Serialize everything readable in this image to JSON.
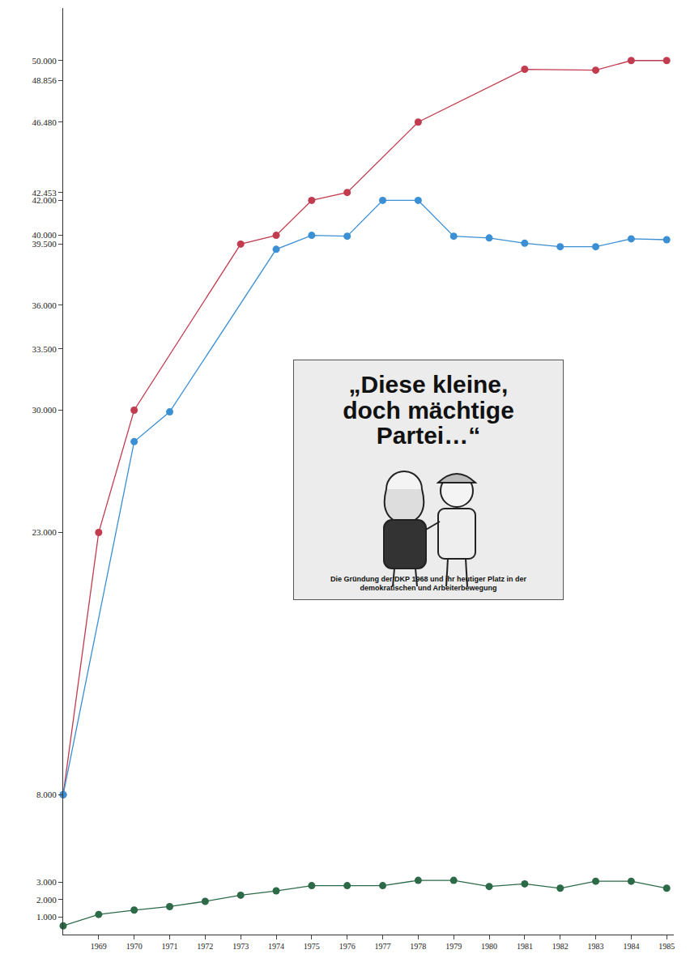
{
  "chart_data": {
    "type": "line",
    "xlim": [
      1968,
      1985.2
    ],
    "xticks": [
      1969,
      1970,
      1971,
      1972,
      1973,
      1974,
      1975,
      1976,
      1977,
      1978,
      1979,
      1980,
      1981,
      1982,
      1983,
      1984,
      1985
    ],
    "ylim": [
      0,
      53000
    ],
    "yticks": [
      {
        "value": 50000,
        "label": "50.000"
      },
      {
        "value": 48856,
        "label": "48.856"
      },
      {
        "value": 46480,
        "label": "46.480"
      },
      {
        "value": 42453,
        "label": "42.453"
      },
      {
        "value": 42000,
        "label": "42.000"
      },
      {
        "value": 40000,
        "label": "40.000"
      },
      {
        "value": 39500,
        "label": "39.500"
      },
      {
        "value": 36000,
        "label": "36.000"
      },
      {
        "value": 33500,
        "label": "33.500"
      },
      {
        "value": 30000,
        "label": "30.000"
      },
      {
        "value": 23000,
        "label": "23.000"
      },
      {
        "value": 8000,
        "label": "8.000"
      },
      {
        "value": 3000,
        "label": "3.000"
      },
      {
        "value": 2000,
        "label": "2.000"
      },
      {
        "value": 1000,
        "label": "1.000"
      }
    ],
    "grid": false,
    "marker": "circle",
    "series": [
      {
        "color": "#c23b4e",
        "x": [
          1968,
          1969,
          1970,
          1973,
          1974,
          1975,
          1976,
          1978,
          1981,
          1983,
          1984,
          1985
        ],
        "values": [
          8000,
          23000,
          30000,
          39500,
          40000,
          42000,
          42453,
          46480,
          49500,
          49450,
          50000,
          50000
        ]
      },
      {
        "color": "#3b8fd4",
        "x": [
          1968,
          1970,
          1971,
          1974,
          1975,
          1976,
          1977,
          1978,
          1979,
          1980,
          1981,
          1982,
          1983,
          1984,
          1985
        ],
        "values": [
          8000,
          28200,
          29900,
          39200,
          40000,
          39950,
          42000,
          42000,
          39950,
          39850,
          39550,
          39350,
          39350,
          39800,
          39750
        ]
      },
      {
        "color": "#2d6a48",
        "x": [
          1968,
          1969,
          1970,
          1971,
          1972,
          1973,
          1974,
          1975,
          1976,
          1977,
          1978,
          1979,
          1980,
          1981,
          1982,
          1983,
          1984,
          1985
        ],
        "values": [
          500,
          1150,
          1400,
          1600,
          1900,
          2250,
          2500,
          2800,
          2800,
          2800,
          3100,
          3100,
          2750,
          2900,
          2650,
          3050,
          3050,
          2650
        ]
      }
    ],
    "annotations": [
      "„Diese kleine, doch mächtige Partei…“",
      "Die Gründung der DKP 1968 und ihr heutiger Platz in der demokratischen und Arbeiterbewegung"
    ]
  }
}
